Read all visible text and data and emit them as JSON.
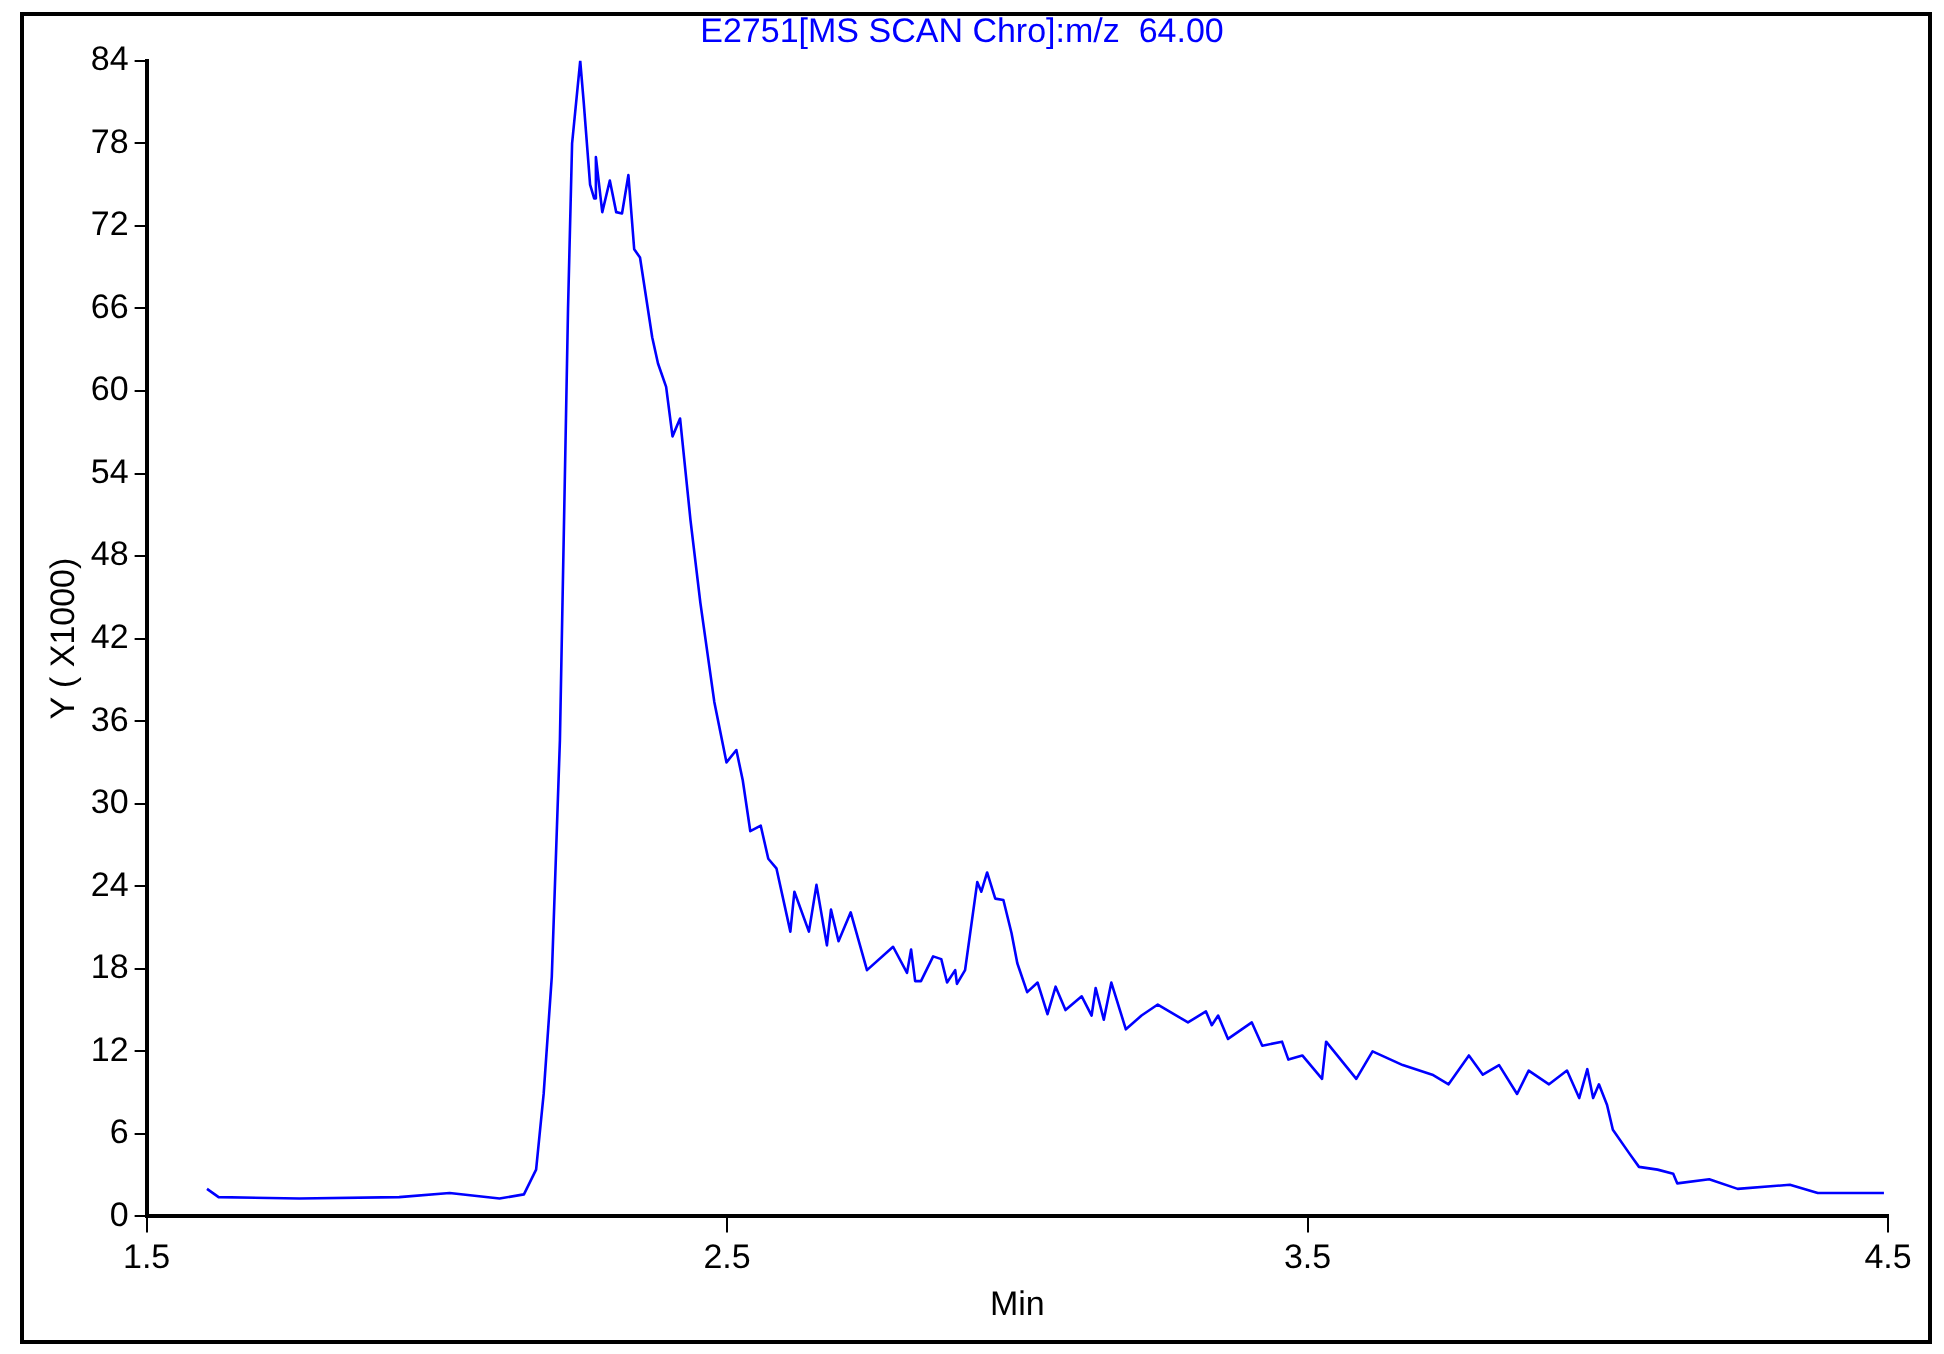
{
  "chart_data": {
    "type": "line",
    "title": "E2751[MS SCAN Chro]:m/z  64.00",
    "xlabel": "Min",
    "ylabel": "Y ( X1000)",
    "xlim": [
      1.5,
      4.5
    ],
    "xticks": [
      1.5,
      2.5,
      3.5,
      4.5
    ],
    "ylim": [
      0,
      84
    ],
    "yticks": [
      0,
      6,
      12,
      18,
      24,
      30,
      36,
      42,
      48,
      54,
      60,
      66,
      72,
      78,
      84
    ],
    "grid": false,
    "legend": false,
    "marker": "none",
    "line_style": "solid",
    "series": [
      {
        "color": "#0000ff",
        "x": [
          1.604,
          1.624,
          1.763,
          1.935,
          2.022,
          2.108,
          2.15,
          2.171,
          2.184,
          2.198,
          2.212,
          2.226,
          2.233,
          2.247,
          2.253,
          2.264,
          2.271,
          2.274,
          2.285,
          2.298,
          2.309,
          2.319,
          2.33,
          2.34,
          2.35,
          2.371,
          2.381,
          2.395,
          2.406,
          2.419,
          2.437,
          2.454,
          2.478,
          2.499,
          2.516,
          2.527,
          2.54,
          2.558,
          2.571,
          2.585,
          2.609,
          2.616,
          2.641,
          2.654,
          2.672,
          2.679,
          2.692,
          2.713,
          2.741,
          2.786,
          2.81,
          2.817,
          2.824,
          2.834,
          2.855,
          2.869,
          2.879,
          2.893,
          2.896,
          2.91,
          2.931,
          2.938,
          2.948,
          2.962,
          2.976,
          2.99,
          3.0,
          3.017,
          3.035,
          3.052,
          3.066,
          3.083,
          3.111,
          3.128,
          3.135,
          3.149,
          3.162,
          3.187,
          3.214,
          3.242,
          3.294,
          3.325,
          3.335,
          3.346,
          3.363,
          3.404,
          3.422,
          3.456,
          3.467,
          3.491,
          3.525,
          3.532,
          3.584,
          3.612,
          3.664,
          3.715,
          3.743,
          3.778,
          3.802,
          3.83,
          3.861,
          3.881,
          3.916,
          3.947,
          3.968,
          3.982,
          3.992,
          4.002,
          4.016,
          4.026,
          4.054,
          4.071,
          4.103,
          4.13,
          4.137,
          4.192,
          4.241,
          4.331,
          4.379,
          4.434,
          4.493
        ],
        "values": [
          2.0,
          1.4,
          1.3,
          1.4,
          1.7,
          1.3,
          1.6,
          3.4,
          8.9,
          17.4,
          34.6,
          66,
          78,
          84,
          81,
          75,
          74,
          77,
          73,
          75.3,
          73,
          72.9,
          75.7,
          70.3,
          69.7,
          63.9,
          62,
          60.3,
          56.7,
          58,
          50.6,
          44.6,
          37.4,
          33,
          33.9,
          31.7,
          28,
          28.4,
          26,
          25.3,
          20.7,
          23.6,
          20.7,
          24.1,
          19.7,
          22.3,
          20,
          22.1,
          17.9,
          19.6,
          17.7,
          19.4,
          17.1,
          17.1,
          18.9,
          18.7,
          17,
          17.9,
          16.9,
          17.9,
          24.3,
          23.6,
          25,
          23.1,
          23,
          20.6,
          18.4,
          16.3,
          17,
          14.7,
          16.7,
          15,
          16,
          14.6,
          16.6,
          14.3,
          17,
          13.6,
          14.6,
          15.4,
          14.1,
          14.9,
          13.9,
          14.6,
          12.9,
          14.1,
          12.4,
          12.7,
          11.4,
          11.7,
          10,
          12.7,
          10,
          12,
          11,
          10.3,
          9.6,
          11.7,
          10.3,
          11,
          8.9,
          10.6,
          9.6,
          10.6,
          8.6,
          10.7,
          8.6,
          9.6,
          8.1,
          6.3,
          4.6,
          3.6,
          3.4,
          3.1,
          2.4,
          2.7,
          2.0,
          2.3,
          1.7,
          1.7,
          1.7
        ]
      }
    ]
  }
}
